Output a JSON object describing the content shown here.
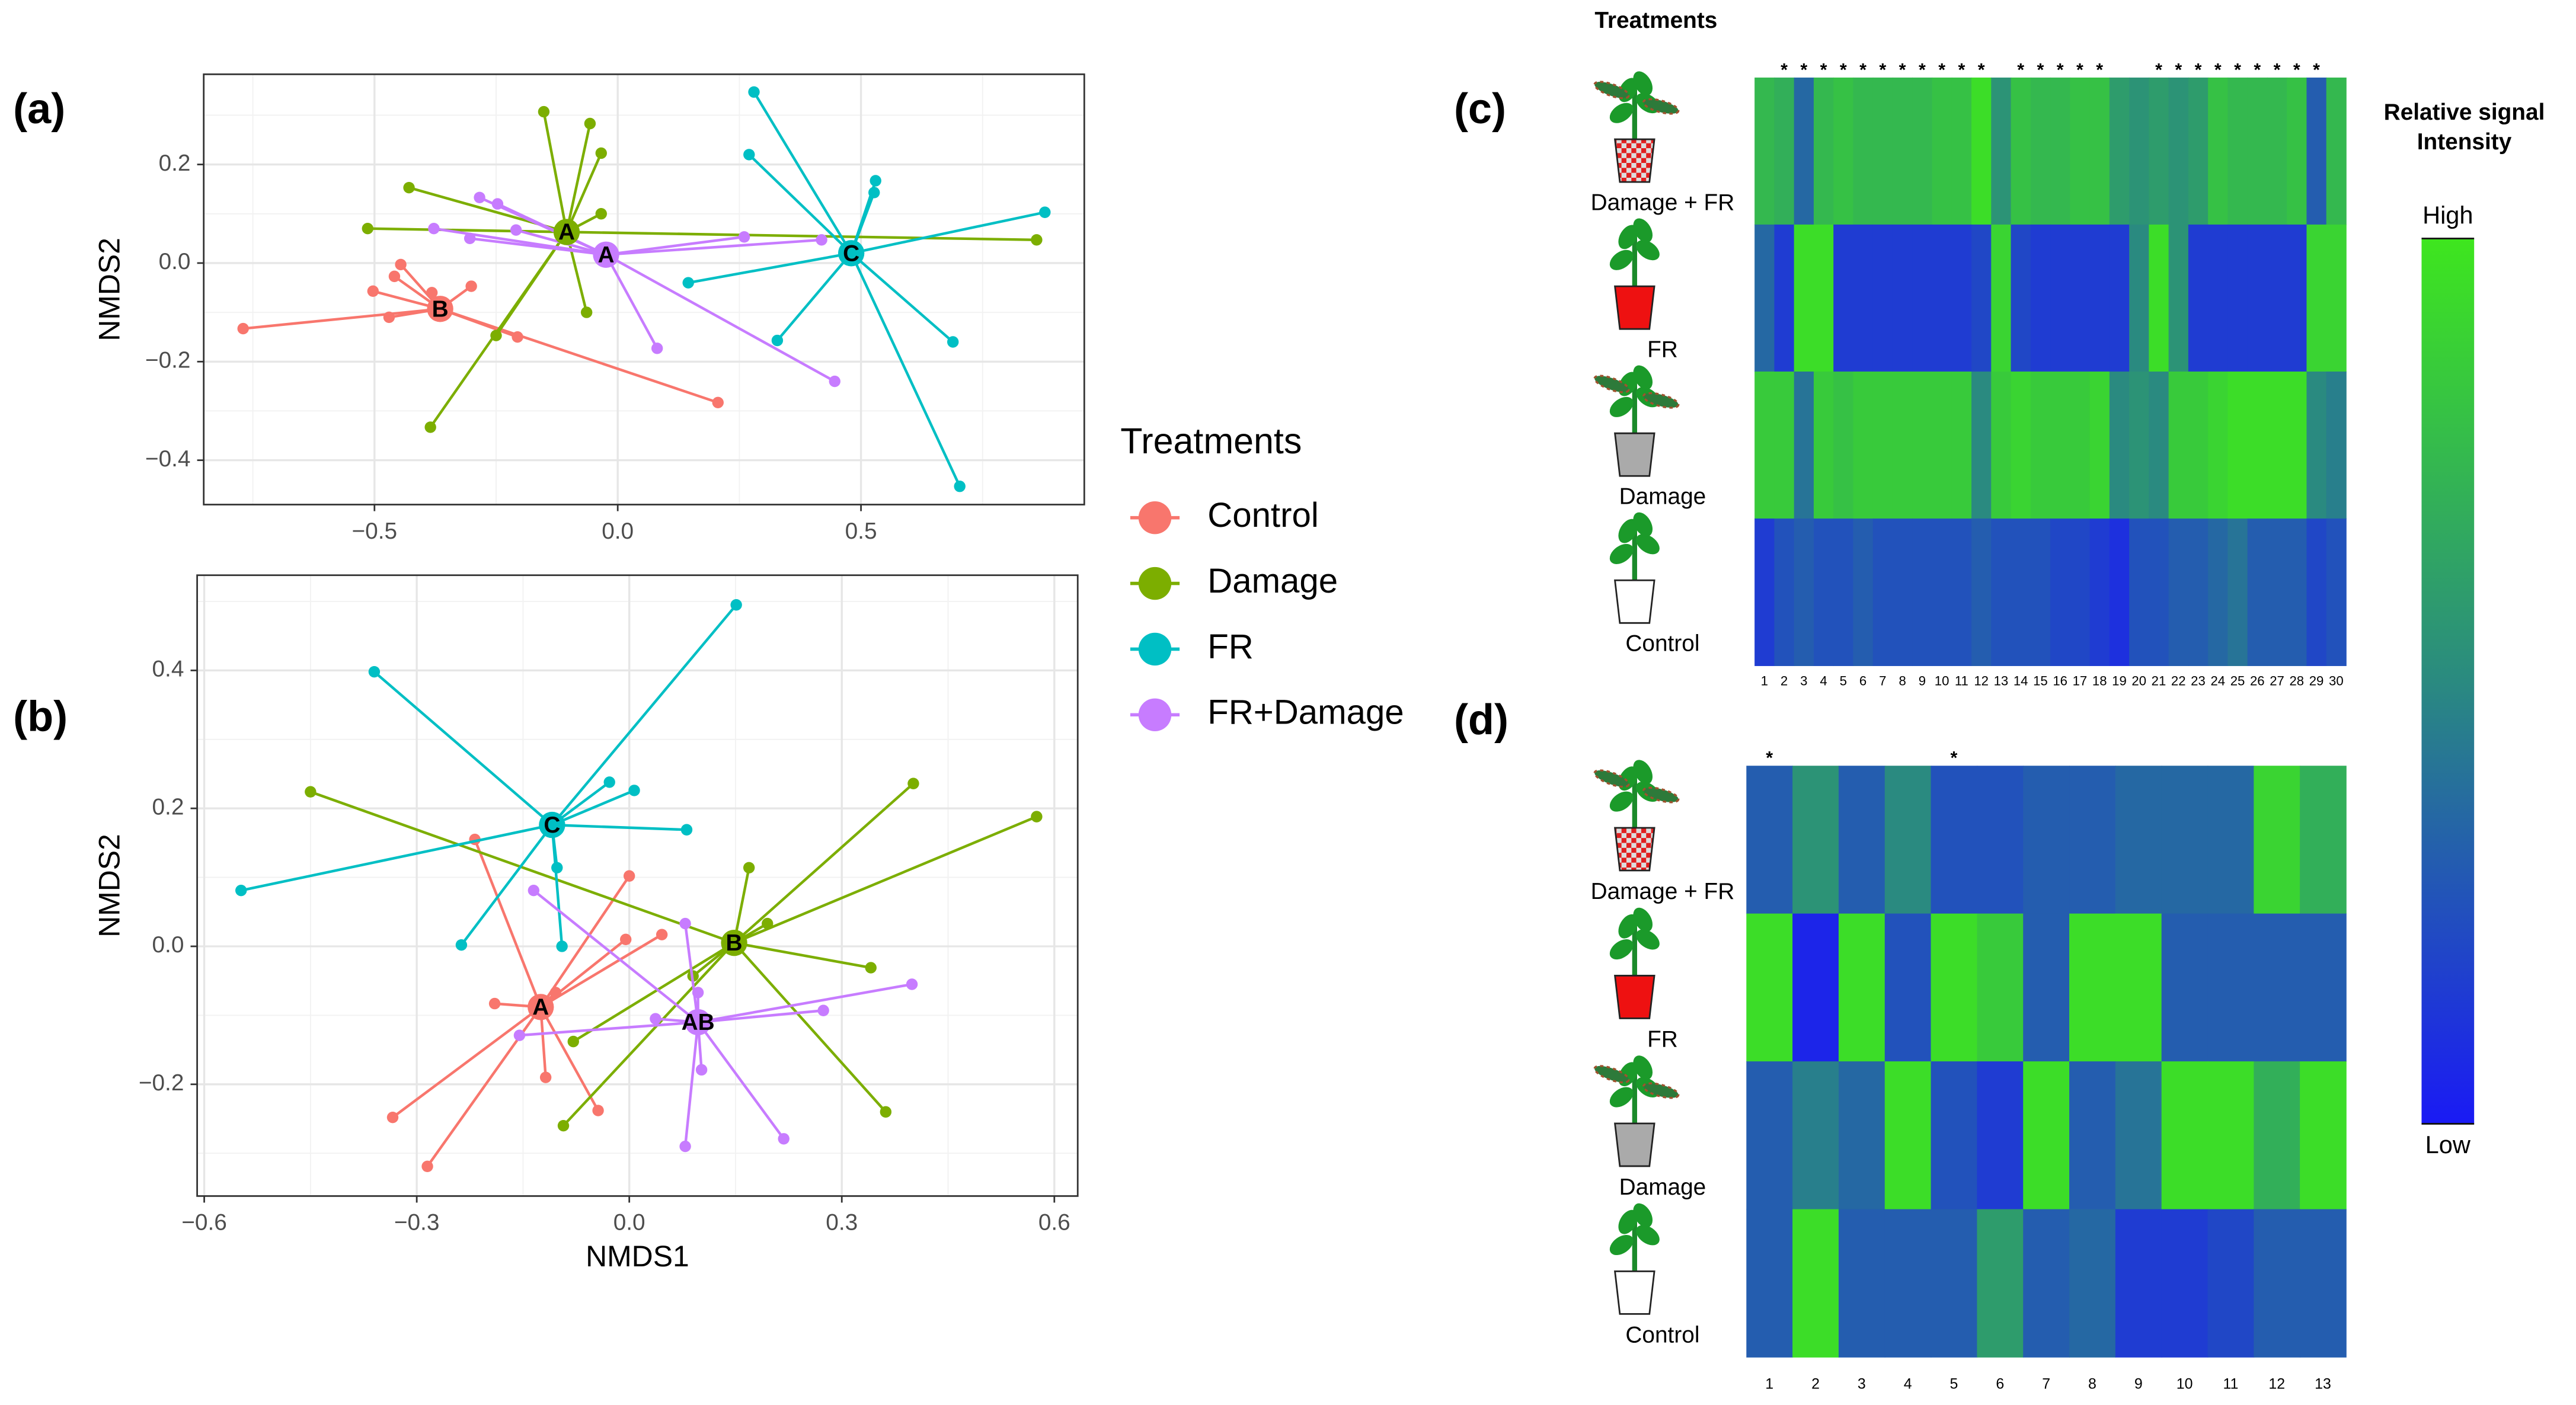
{
  "legend": {
    "title": "Treatments",
    "entries": [
      {
        "name": "Control",
        "color": "#F8766D"
      },
      {
        "name": "Damage",
        "color": "#7CAE00"
      },
      {
        "name": "FR",
        "color": "#00BFC4"
      },
      {
        "name": "FR+Damage",
        "color": "#C77CFF"
      }
    ]
  },
  "heatmap_header": "Treatments",
  "colorbar": {
    "title": [
      "Relative signal",
      "Intensity"
    ],
    "labels": [
      {
        "value": 1,
        "label": "High"
      },
      {
        "value": 0,
        "label": "Low"
      }
    ],
    "colors": [
      "#1a1af5",
      "#2a8a80",
      "#3ee61e"
    ]
  },
  "chart_data": [
    {
      "type": "scatter",
      "panel_label": "(a)",
      "ylabel": "NMDS2",
      "xlim": [
        -0.851,
        0.959
      ],
      "ylim": [
        -0.49,
        0.383
      ],
      "xticks": [
        {
          "value": -0.5,
          "label": "−0.5"
        },
        {
          "value": 0,
          "label": "0.0"
        },
        0.5
      ],
      "yticks": [
        {
          "value": -0.4,
          "label": "−0.4"
        },
        {
          "value": -0.2,
          "label": "−0.2"
        },
        {
          "value": 0,
          "label": "0.0"
        },
        0.2
      ],
      "grid": true,
      "series": [
        {
          "color": "#F8766D",
          "centroid": {
            "x": -0.365,
            "y": -0.093,
            "label": "B"
          },
          "x": [
            -0.77,
            -0.503,
            -0.459,
            -0.446,
            -0.47,
            -0.382,
            -0.301,
            -0.206,
            0.206
          ],
          "y": [
            -0.133,
            -0.057,
            -0.027,
            -0.003,
            -0.11,
            -0.06,
            -0.047,
            -0.15,
            -0.283
          ]
        },
        {
          "color": "#7CAE00",
          "centroid": {
            "x": -0.105,
            "y": 0.063,
            "label": "A"
          },
          "x": [
            -0.152,
            -0.057,
            -0.034,
            -0.429,
            -0.514,
            -0.034,
            0.861,
            -0.064,
            -0.25,
            -0.385
          ],
          "y": [
            0.307,
            0.283,
            0.223,
            0.153,
            0.07,
            0.1,
            0.047,
            -0.1,
            -0.147,
            -0.333
          ]
        },
        {
          "color": "#00BFC4",
          "centroid": {
            "x": 0.48,
            "y": 0.02,
            "label": "C"
          },
          "x": [
            0.28,
            0.27,
            0.53,
            0.527,
            0.878,
            0.145,
            0.328,
            0.689,
            0.703
          ],
          "y": [
            0.347,
            0.22,
            0.167,
            0.143,
            0.103,
            -0.04,
            -0.157,
            -0.16,
            -0.453
          ]
        },
        {
          "color": "#C77CFF",
          "centroid": {
            "x": -0.024,
            "y": 0.017,
            "label": "A"
          },
          "x": [
            -0.378,
            -0.284,
            -0.247,
            -0.209,
            -0.304,
            0.26,
            0.419,
            0.081,
            0.446
          ],
          "y": [
            0.07,
            0.133,
            0.12,
            0.067,
            0.05,
            0.053,
            0.047,
            -0.173,
            -0.24
          ]
        }
      ]
    },
    {
      "type": "scatter",
      "panel_label": "(b)",
      "xlabel": "NMDS1",
      "ylabel": "NMDS2",
      "xlim": [
        -0.61,
        0.633
      ],
      "ylim": [
        -0.362,
        0.538
      ],
      "xticks": [
        {
          "value": -0.6,
          "label": "−0.6"
        },
        {
          "value": -0.3,
          "label": "−0.3"
        },
        {
          "value": 0,
          "label": "0.0"
        },
        0.3,
        0.6
      ],
      "yticks": [
        {
          "value": -0.2,
          "label": "−0.2"
        },
        {
          "value": 0,
          "label": "0.0"
        },
        0.2,
        0.4
      ],
      "grid": true,
      "series": [
        {
          "color": "#F8766D",
          "centroid": {
            "x": -0.125,
            "y": -0.088,
            "label": "A"
          },
          "x": [
            -0.218,
            0.0,
            -0.005,
            0.046,
            -0.19,
            -0.104,
            -0.118,
            -0.044,
            -0.334,
            -0.285
          ],
          "y": [
            0.155,
            0.102,
            0.01,
            0.017,
            -0.083,
            -0.067,
            -0.19,
            -0.238,
            -0.248,
            -0.319
          ]
        },
        {
          "color": "#7CAE00",
          "centroid": {
            "x": 0.148,
            "y": 0.005,
            "label": "B"
          },
          "x": [
            -0.45,
            0.401,
            0.575,
            0.169,
            0.195,
            0.341,
            0.09,
            -0.079,
            0.362,
            -0.093
          ],
          "y": [
            0.224,
            0.236,
            0.188,
            0.114,
            0.033,
            -0.031,
            -0.043,
            -0.138,
            -0.24,
            -0.26
          ]
        },
        {
          "color": "#00BFC4",
          "centroid": {
            "x": -0.109,
            "y": 0.176,
            "label": "C"
          },
          "x": [
            0.151,
            -0.36,
            -0.028,
            0.007,
            0.081,
            -0.102,
            -0.095,
            -0.237,
            -0.548
          ],
          "y": [
            0.495,
            0.398,
            0.238,
            0.226,
            0.169,
            0.114,
            0.0,
            0.002,
            0.081
          ]
        },
        {
          "color": "#C77CFF",
          "centroid": {
            "x": 0.097,
            "y": -0.11,
            "label": "AB"
          },
          "x": [
            -0.135,
            0.079,
            0.097,
            0.399,
            0.274,
            0.037,
            -0.155,
            0.102,
            0.079,
            0.218
          ],
          "y": [
            0.081,
            0.033,
            -0.067,
            -0.055,
            -0.093,
            -0.105,
            -0.129,
            -0.179,
            -0.29,
            -0.279
          ]
        }
      ]
    },
    {
      "type": "heatmap",
      "panel_label": "(c)",
      "rows": [
        "Damage + FR",
        "FR",
        "Damage",
        "Control"
      ],
      "columns": [
        1,
        2,
        3,
        4,
        5,
        6,
        7,
        8,
        9,
        10,
        11,
        12,
        13,
        14,
        15,
        16,
        17,
        18,
        19,
        20,
        21,
        22,
        23,
        24,
        25,
        26,
        27,
        28,
        29,
        30
      ],
      "significance": [
        null,
        "*",
        "*",
        "*",
        "*",
        "*",
        "*",
        "*",
        "*",
        "*",
        "*",
        "*",
        null,
        "*",
        "*",
        "*",
        "*",
        "*",
        null,
        null,
        "*",
        "*",
        "*",
        "*",
        "*",
        "*",
        "*",
        "*",
        "*",
        null
      ],
      "values": [
        [
          0.75,
          0.7,
          0.35,
          0.75,
          0.8,
          0.75,
          0.75,
          0.75,
          0.75,
          0.8,
          0.8,
          0.95,
          0.55,
          0.8,
          0.75,
          0.75,
          0.8,
          0.8,
          0.6,
          0.55,
          0.6,
          0.55,
          0.6,
          0.8,
          0.75,
          0.75,
          0.75,
          0.8,
          0.3,
          0.75
        ],
        [
          0.35,
          0.15,
          0.95,
          0.95,
          0.15,
          0.15,
          0.15,
          0.15,
          0.15,
          0.15,
          0.15,
          0.2,
          0.9,
          0.2,
          0.15,
          0.15,
          0.15,
          0.15,
          0.15,
          0.5,
          0.95,
          0.55,
          0.15,
          0.15,
          0.15,
          0.15,
          0.15,
          0.15,
          0.9,
          0.9
        ],
        [
          0.85,
          0.85,
          0.4,
          0.85,
          0.8,
          0.85,
          0.85,
          0.85,
          0.85,
          0.85,
          0.85,
          0.5,
          0.85,
          0.9,
          0.85,
          0.85,
          0.85,
          0.9,
          0.5,
          0.55,
          0.5,
          0.85,
          0.85,
          0.9,
          0.95,
          0.95,
          0.95,
          0.95,
          0.5,
          0.45
        ],
        [
          0.15,
          0.25,
          0.3,
          0.25,
          0.25,
          0.3,
          0.25,
          0.25,
          0.25,
          0.25,
          0.25,
          0.3,
          0.25,
          0.25,
          0.25,
          0.2,
          0.2,
          0.15,
          0.1,
          0.25,
          0.25,
          0.3,
          0.3,
          0.35,
          0.4,
          0.3,
          0.3,
          0.3,
          0.2,
          0.25
        ]
      ]
    },
    {
      "type": "heatmap",
      "panel_label": "(d)",
      "rows": [
        "Damage + FR",
        "FR",
        "Damage",
        "Control"
      ],
      "columns": [
        1,
        2,
        3,
        4,
        5,
        6,
        7,
        8,
        9,
        10,
        11,
        12,
        13
      ],
      "significance": [
        "*",
        null,
        null,
        null,
        "*",
        null,
        null,
        null,
        null,
        null,
        null,
        null,
        null
      ],
      "values": [
        [
          0.3,
          0.55,
          0.3,
          0.5,
          0.25,
          0.25,
          0.3,
          0.3,
          0.35,
          0.35,
          0.35,
          0.9,
          0.7
        ],
        [
          0.95,
          0.05,
          0.95,
          0.25,
          0.95,
          0.85,
          0.3,
          0.95,
          0.95,
          0.3,
          0.3,
          0.3,
          0.3
        ],
        [
          0.3,
          0.45,
          0.35,
          0.95,
          0.25,
          0.15,
          0.95,
          0.3,
          0.4,
          0.95,
          0.95,
          0.7,
          0.95
        ],
        [
          0.3,
          0.95,
          0.3,
          0.3,
          0.3,
          0.6,
          0.3,
          0.35,
          0.15,
          0.15,
          0.2,
          0.3,
          0.3
        ]
      ]
    }
  ]
}
